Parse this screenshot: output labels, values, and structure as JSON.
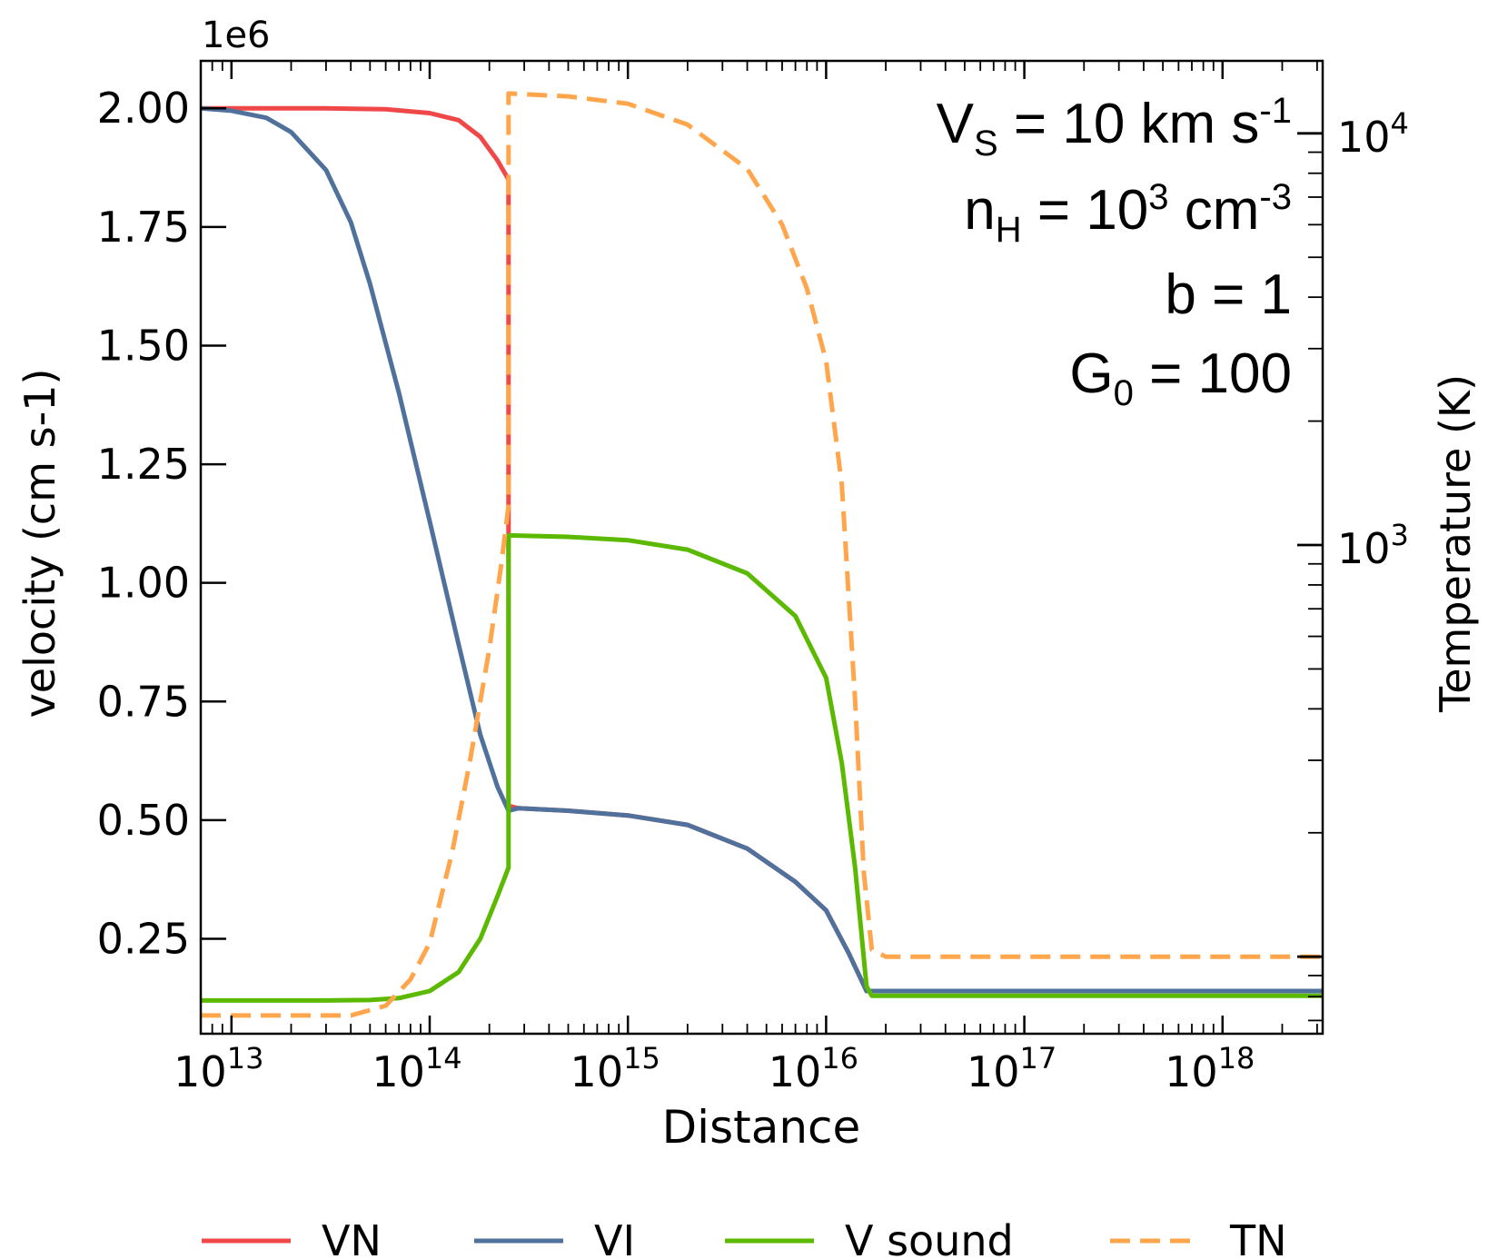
{
  "chart_data": {
    "type": "line",
    "offset_label": "1e6",
    "xlabel": "Distance",
    "ylabel": "velocity (cm s-1)",
    "y2label": "Temperature (K)",
    "xscale": "log",
    "xlim": [
      7000000000000.0,
      3.2e+18
    ],
    "ylim": [
      0.05,
      2.1
    ],
    "y2scale": "log",
    "y2lim": [
      65,
      15000
    ],
    "xticks": [
      {
        "value": 10000000000000.0,
        "base": "10",
        "exp": "13"
      },
      {
        "value": 100000000000000.0,
        "base": "10",
        "exp": "14"
      },
      {
        "value": 1000000000000000.0,
        "base": "10",
        "exp": "15"
      },
      {
        "value": 1e+16,
        "base": "10",
        "exp": "16"
      },
      {
        "value": 1e+17,
        "base": "10",
        "exp": "17"
      },
      {
        "value": 1e+18,
        "base": "10",
        "exp": "18"
      }
    ],
    "yticks": [
      {
        "value": 2.0,
        "label": "2.00"
      },
      {
        "value": 1.75,
        "label": "1.75"
      },
      {
        "value": 1.5,
        "label": "1.50"
      },
      {
        "value": 1.25,
        "label": "1.25"
      },
      {
        "value": 1.0,
        "label": "1.00"
      },
      {
        "value": 0.75,
        "label": "0.75"
      },
      {
        "value": 0.5,
        "label": "0.50"
      },
      {
        "value": 0.25,
        "label": "0.25"
      }
    ],
    "y2ticks": [
      {
        "value": 10000,
        "base": "10",
        "exp": "4"
      },
      {
        "value": 1000,
        "base": "10",
        "exp": "3"
      }
    ],
    "grid": false,
    "legend_position": "bottom",
    "annotations": [
      {
        "main": "V",
        "sub": "S",
        "rest": " = 10 km s",
        "sup": "-1"
      },
      {
        "main": "n",
        "sub": "H",
        "rest": " = 10",
        "sup": "3",
        "rest2": " cm",
        "sup2": "-3"
      },
      {
        "main": "b = 1"
      },
      {
        "main": "G",
        "sub": "0",
        "rest": " = 100"
      }
    ],
    "series": [
      {
        "name": "VN",
        "axis": "left",
        "color": "#f04848",
        "dash": "solid",
        "points": [
          [
            7000000000000.0,
            2.0
          ],
          [
            10000000000000.0,
            2.0
          ],
          [
            30000000000000.0,
            2.0
          ],
          [
            60000000000000.0,
            1.998
          ],
          [
            100000000000000.0,
            1.99
          ],
          [
            140000000000000.0,
            1.975
          ],
          [
            180000000000000.0,
            1.94
          ],
          [
            220000000000000.0,
            1.89
          ],
          [
            250000000000000.0,
            1.85
          ],
          [
            250000000000000.0,
            0.53
          ],
          [
            280000000000000.0,
            0.525
          ],
          [
            500000000000000.0,
            0.52
          ],
          [
            1000000000000000.0,
            0.51
          ],
          [
            2000000000000000.0,
            0.49
          ],
          [
            4000000000000000.0,
            0.44
          ],
          [
            7000000000000000.0,
            0.37
          ],
          [
            1e+16,
            0.31
          ],
          [
            1.3e+16,
            0.22
          ],
          [
            1.6e+16,
            0.14
          ],
          [
            2e+16,
            0.14
          ],
          [
            1e+17,
            0.14
          ],
          [
            1e+18,
            0.14
          ],
          [
            3.2e+18,
            0.14
          ]
        ]
      },
      {
        "name": "VI",
        "axis": "left",
        "color": "#4f719b",
        "dash": "solid",
        "points": [
          [
            7000000000000.0,
            2.0
          ],
          [
            10000000000000.0,
            1.995
          ],
          [
            15000000000000.0,
            1.98
          ],
          [
            20000000000000.0,
            1.95
          ],
          [
            30000000000000.0,
            1.87
          ],
          [
            40000000000000.0,
            1.76
          ],
          [
            50000000000000.0,
            1.63
          ],
          [
            70000000000000.0,
            1.4
          ],
          [
            100000000000000.0,
            1.13
          ],
          [
            140000000000000.0,
            0.87
          ],
          [
            180000000000000.0,
            0.68
          ],
          [
            220000000000000.0,
            0.57
          ],
          [
            250000000000000.0,
            0.52
          ],
          [
            280000000000000.0,
            0.525
          ],
          [
            500000000000000.0,
            0.52
          ],
          [
            1000000000000000.0,
            0.51
          ],
          [
            2000000000000000.0,
            0.49
          ],
          [
            4000000000000000.0,
            0.44
          ],
          [
            7000000000000000.0,
            0.37
          ],
          [
            1e+16,
            0.31
          ],
          [
            1.3e+16,
            0.22
          ],
          [
            1.6e+16,
            0.14
          ],
          [
            2e+16,
            0.14
          ],
          [
            1e+17,
            0.14
          ],
          [
            1e+18,
            0.14
          ],
          [
            3.2e+18,
            0.14
          ]
        ]
      },
      {
        "name": "V sound",
        "axis": "left",
        "color": "#5ab900",
        "dash": "solid",
        "points": [
          [
            7000000000000.0,
            0.12
          ],
          [
            30000000000000.0,
            0.12
          ],
          [
            50000000000000.0,
            0.121
          ],
          [
            70000000000000.0,
            0.125
          ],
          [
            100000000000000.0,
            0.14
          ],
          [
            140000000000000.0,
            0.18
          ],
          [
            180000000000000.0,
            0.25
          ],
          [
            220000000000000.0,
            0.34
          ],
          [
            250000000000000.0,
            0.4
          ],
          [
            250000000000000.0,
            1.1
          ],
          [
            500000000000000.0,
            1.097
          ],
          [
            1000000000000000.0,
            1.09
          ],
          [
            2000000000000000.0,
            1.07
          ],
          [
            4000000000000000.0,
            1.02
          ],
          [
            7000000000000000.0,
            0.93
          ],
          [
            1e+16,
            0.8
          ],
          [
            1.2e+16,
            0.62
          ],
          [
            1.4e+16,
            0.4
          ],
          [
            1.6e+16,
            0.15
          ],
          [
            1.7e+16,
            0.13
          ],
          [
            2e+16,
            0.13
          ],
          [
            1e+17,
            0.13
          ],
          [
            1e+18,
            0.13
          ],
          [
            3.2e+18,
            0.13
          ]
        ]
      },
      {
        "name": "TN",
        "axis": "right",
        "color": "#ffa64d",
        "dash": "dashed",
        "points": [
          [
            7000000000000.0,
            72
          ],
          [
            40000000000000.0,
            72
          ],
          [
            60000000000000.0,
            76
          ],
          [
            80000000000000.0,
            88
          ],
          [
            100000000000000.0,
            108
          ],
          [
            130000000000000.0,
            180
          ],
          [
            160000000000000.0,
            300
          ],
          [
            200000000000000.0,
            560
          ],
          [
            230000000000000.0,
            900
          ],
          [
            250000000000000.0,
            1250
          ],
          [
            250000000000000.0,
            12500
          ],
          [
            500000000000000.0,
            12300
          ],
          [
            1000000000000000.0,
            11800
          ],
          [
            2000000000000000.0,
            10500
          ],
          [
            4000000000000000.0,
            8200
          ],
          [
            6000000000000000.0,
            6000
          ],
          [
            8000000000000000.0,
            4200
          ],
          [
            1e+16,
            2800
          ],
          [
            1.2e+16,
            1400
          ],
          [
            1.4e+16,
            420
          ],
          [
            1.55e+16,
            160
          ],
          [
            1.7e+16,
            104
          ],
          [
            2e+16,
            100
          ],
          [
            1e+17,
            100
          ],
          [
            1e+18,
            100
          ],
          [
            3.2e+18,
            100
          ]
        ]
      }
    ]
  }
}
